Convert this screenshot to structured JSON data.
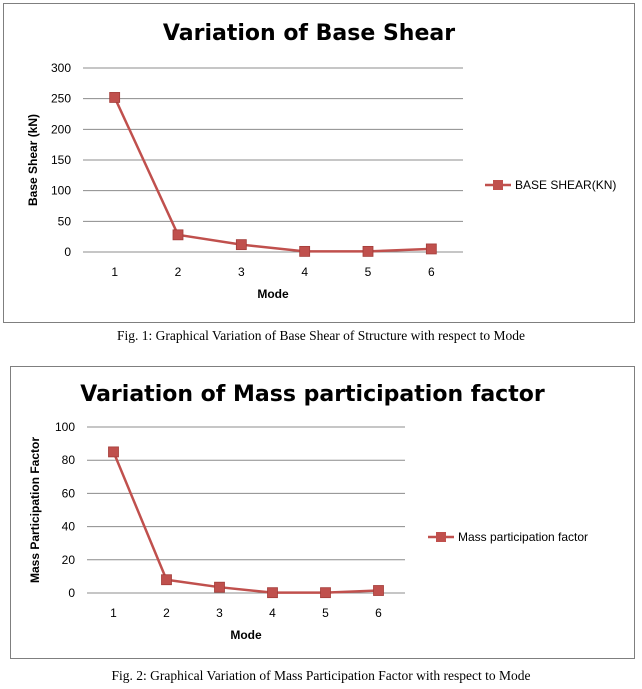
{
  "chart_data": [
    {
      "type": "line",
      "title": "Variation of Base Shear",
      "xlabel": "Mode",
      "ylabel": "Base Shear (kN)",
      "categories": [
        "1",
        "2",
        "3",
        "4",
        "5",
        "6"
      ],
      "y_ticks": [
        "0",
        "50",
        "100",
        "150",
        "200",
        "250",
        "300"
      ],
      "ylim": [
        0,
        300
      ],
      "grid": true,
      "legend_position": "right",
      "series": [
        {
          "name": "BASE SHEAR(KN)",
          "color": "#c0504d",
          "values": [
            252,
            28,
            12,
            1,
            1,
            5
          ]
        }
      ]
    },
    {
      "type": "line",
      "title": "Variation of Mass participation factor",
      "xlabel": "Mode",
      "ylabel": "Mass Participation Factor",
      "categories": [
        "1",
        "2",
        "3",
        "4",
        "5",
        "6"
      ],
      "y_ticks": [
        "0",
        "20",
        "40",
        "60",
        "80",
        "100"
      ],
      "ylim": [
        0,
        100
      ],
      "grid": true,
      "legend_position": "right",
      "series": [
        {
          "name": "Mass participation factor",
          "color": "#c0504d",
          "values": [
            85,
            8,
            3.5,
            0.2,
            0.2,
            1.5
          ]
        }
      ]
    }
  ],
  "captions": {
    "fig1": "Fig. 1: Graphical Variation of Base Shear of Structure with respect to Mode",
    "fig2": "Fig. 2: Graphical Variation of Mass Participation Factor with respect to Mode"
  }
}
